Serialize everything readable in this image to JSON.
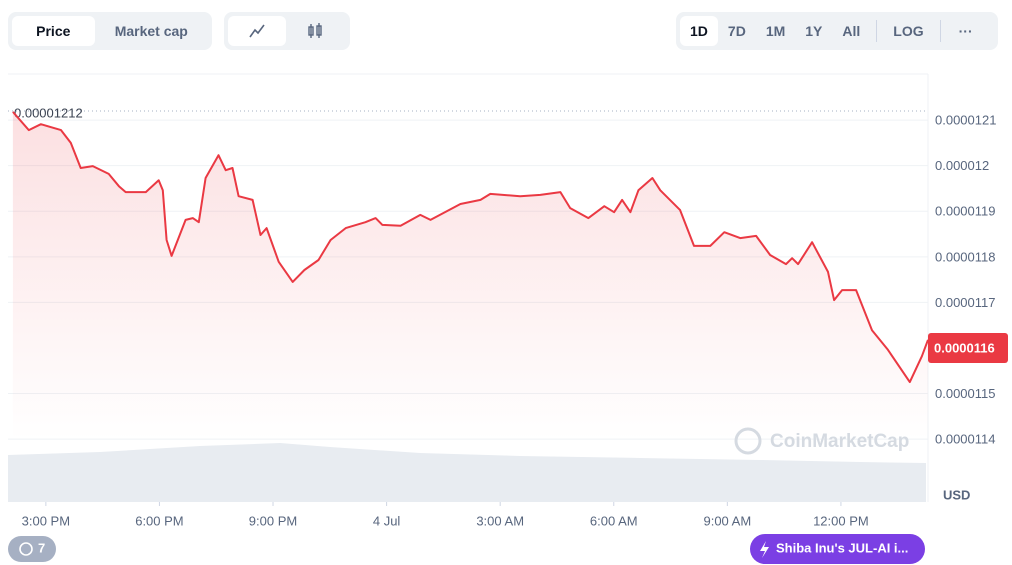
{
  "toolbar": {
    "tabs": [
      "Price",
      "Market cap"
    ],
    "ranges": [
      "1D",
      "7D",
      "1M",
      "1Y",
      "All",
      "LOG"
    ],
    "more": "···"
  },
  "watermark": "CoinMarketCap",
  "history_badge": "7",
  "promo": "Shiba Inu's JUL-AI i...",
  "chart_data": {
    "type": "line",
    "color": "#ea3943",
    "y_axis_label": "USD",
    "max_value": 1.212e-05,
    "current_value": 1.16e-05,
    "xlim": [
      14,
      38.3
    ],
    "xticks": [
      {
        "value": 15,
        "label": "3:00 PM"
      },
      {
        "value": 18,
        "label": "6:00 PM"
      },
      {
        "value": 21,
        "label": "9:00 PM"
      },
      {
        "value": 24,
        "label": "4 Jul"
      },
      {
        "value": 27,
        "label": "3:00 AM"
      },
      {
        "value": 30,
        "label": "6:00 AM"
      },
      {
        "value": 33,
        "label": "9:00 AM"
      },
      {
        "value": 36,
        "label": "12:00 PM"
      }
    ],
    "ylim": [
      1.1262e-05,
      1.2199e-05
    ],
    "yticks": [
      1.21e-05,
      1.2e-05,
      1.19e-05,
      1.18e-05,
      1.17e-05,
      1.15e-05,
      1.14e-05
    ],
    "grid": true,
    "x": [
      14.13,
      14.55,
      14.87,
      15.4,
      15.66,
      15.92,
      16.24,
      16.66,
      16.93,
      17.11,
      17.64,
      17.98,
      18.09,
      18.19,
      18.32,
      18.69,
      18.88,
      19.04,
      19.22,
      19.56,
      19.75,
      19.93,
      20.09,
      20.46,
      20.67,
      20.83,
      21.15,
      21.52,
      21.83,
      22.2,
      22.52,
      22.92,
      23.44,
      23.71,
      23.89,
      24.37,
      24.89,
      25.16,
      25.95,
      26.48,
      26.74,
      27.53,
      28.06,
      28.59,
      28.85,
      29.33,
      29.75,
      30.01,
      30.22,
      30.44,
      30.65,
      31.02,
      31.23,
      31.75,
      32.12,
      32.55,
      32.92,
      33.34,
      33.76,
      34.13,
      34.55,
      34.71,
      34.87,
      35.24,
      35.66,
      35.82,
      36.03,
      36.4,
      36.82,
      37.24,
      37.82,
      38.14,
      38.3
    ],
    "values": [
      1.2118e-05,
      1.2078e-05,
      1.2091e-05,
      1.2078e-05,
      1.205e-05,
      1.1995e-05,
      1.1999e-05,
      1.1982e-05,
      1.1955e-05,
      1.1942e-05,
      1.1942e-05,
      1.1968e-05,
      1.1946e-05,
      1.1837e-05,
      1.1802e-05,
      1.1881e-05,
      1.1885e-05,
      1.1876e-05,
      1.1973e-05,
      1.2023e-05,
      1.199e-05,
      1.1995e-05,
      1.1933e-05,
      1.1925e-05,
      1.1848e-05,
      1.1863e-05,
      1.1789e-05,
      1.1745e-05,
      1.1771e-05,
      1.1793e-05,
      1.1837e-05,
      1.1863e-05,
      1.1876e-05,
      1.1885e-05,
      1.187e-05,
      1.1868e-05,
      1.1892e-05,
      1.1881e-05,
      1.1916e-05,
      1.1925e-05,
      1.1938e-05,
      1.1933e-05,
      1.1936e-05,
      1.1942e-05,
      1.1907e-05,
      1.1885e-05,
      1.1911e-05,
      1.1898e-05,
      1.1925e-05,
      1.1898e-05,
      1.1946e-05,
      1.1973e-05,
      1.1946e-05,
      1.1903e-05,
      1.1824e-05,
      1.1824e-05,
      1.1854e-05,
      1.1841e-05,
      1.1846e-05,
      1.1804e-05,
      1.1784e-05,
      1.1797e-05,
      1.1784e-05,
      1.1832e-05,
      1.1767e-05,
      1.1705e-05,
      1.1727e-05,
      1.1727e-05,
      1.1639e-05,
      1.1596e-05,
      1.1525e-05,
      1.1582e-05,
      1.1618e-05
    ]
  }
}
